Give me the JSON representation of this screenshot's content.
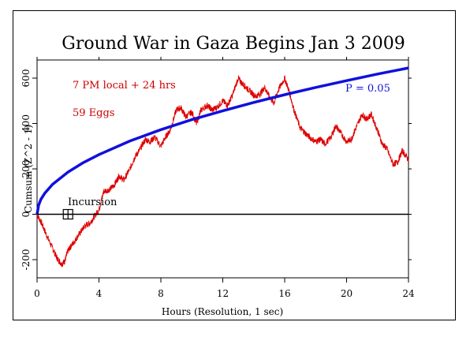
{
  "chart_data": {
    "type": "line",
    "title": "Ground War in Gaza Begins Jan 3 2009",
    "xlabel": "Hours (Resolution, 1 sec)",
    "ylabel": "Cumsum (Z^2 - 1)",
    "xlim": [
      0,
      24
    ],
    "ylim": [
      -280,
      680
    ],
    "x_ticks": [
      "0",
      "4",
      "8",
      "12",
      "16",
      "20",
      "24"
    ],
    "y_ticks": [
      "-200",
      "0",
      "200",
      "400",
      "600"
    ],
    "grid": false,
    "annotations": {
      "info_line1": "7 PM local + 24 hrs",
      "info_line2": "59 Eggs",
      "p_label": "P = 0.05",
      "event_label": "Incursion",
      "event_x": 2
    },
    "colors": {
      "cumsum": "#dd0000",
      "envelope": "#1010dd",
      "baseline": "#000000",
      "text_info": "#cc0000",
      "text_p": "#1010dd"
    },
    "series": [
      {
        "name": "",
        "role": "cumsum",
        "x": [
          0,
          0.3,
          0.6,
          1.0,
          1.3,
          1.6,
          1.8,
          2.0,
          2.2,
          2.5,
          2.8,
          3.1,
          3.4,
          3.7,
          4.0,
          4.3,
          4.7,
          5.0,
          5.3,
          5.6,
          6.0,
          6.3,
          6.6,
          7.0,
          7.3,
          7.6,
          8.0,
          8.3,
          8.6,
          9.0,
          9.3,
          9.6,
          10.0,
          10.3,
          10.6,
          11.0,
          11.3,
          11.6,
          12.0,
          12.3,
          12.6,
          13.0,
          13.2,
          13.5,
          13.8,
          14.1,
          14.4,
          14.7,
          15.0,
          15.3,
          15.6,
          16.0,
          16.3,
          16.6,
          17.0,
          17.3,
          17.6,
          18.0,
          18.3,
          18.6,
          19.0,
          19.3,
          19.6,
          20.0,
          20.3,
          20.6,
          21.0,
          21.3,
          21.6,
          22.0,
          22.3,
          22.6,
          23.0,
          23.3,
          23.6,
          24.0
        ],
        "y": [
          0,
          -40,
          -90,
          -150,
          -195,
          -220,
          -205,
          -160,
          -140,
          -110,
          -80,
          -50,
          -40,
          -10,
          20,
          100,
          110,
          130,
          170,
          150,
          200,
          250,
          280,
          330,
          320,
          340,
          300,
          340,
          370,
          460,
          470,
          430,
          450,
          400,
          460,
          480,
          460,
          470,
          500,
          480,
          520,
          600,
          580,
          560,
          540,
          520,
          530,
          560,
          520,
          490,
          550,
          600,
          540,
          460,
          380,
          360,
          340,
          320,
          330,
          310,
          340,
          390,
          360,
          320,
          330,
          380,
          440,
          420,
          440,
          370,
          310,
          290,
          220,
          230,
          280,
          240
        ]
      },
      {
        "name": "P = 0.05",
        "role": "envelope",
        "x": [
          0,
          0.1,
          0.25,
          0.5,
          1,
          2,
          3,
          4,
          6,
          8,
          10,
          12,
          14,
          16,
          18,
          20,
          22,
          24
        ],
        "y": [
          0,
          40,
          66,
          93,
          132,
          186,
          228,
          263,
          323,
          373,
          417,
          456,
          493,
          527,
          559,
          589,
          618,
          645
        ]
      },
      {
        "name": "",
        "role": "baseline",
        "x": [
          0,
          24
        ],
        "y": [
          0,
          0
        ]
      }
    ]
  }
}
